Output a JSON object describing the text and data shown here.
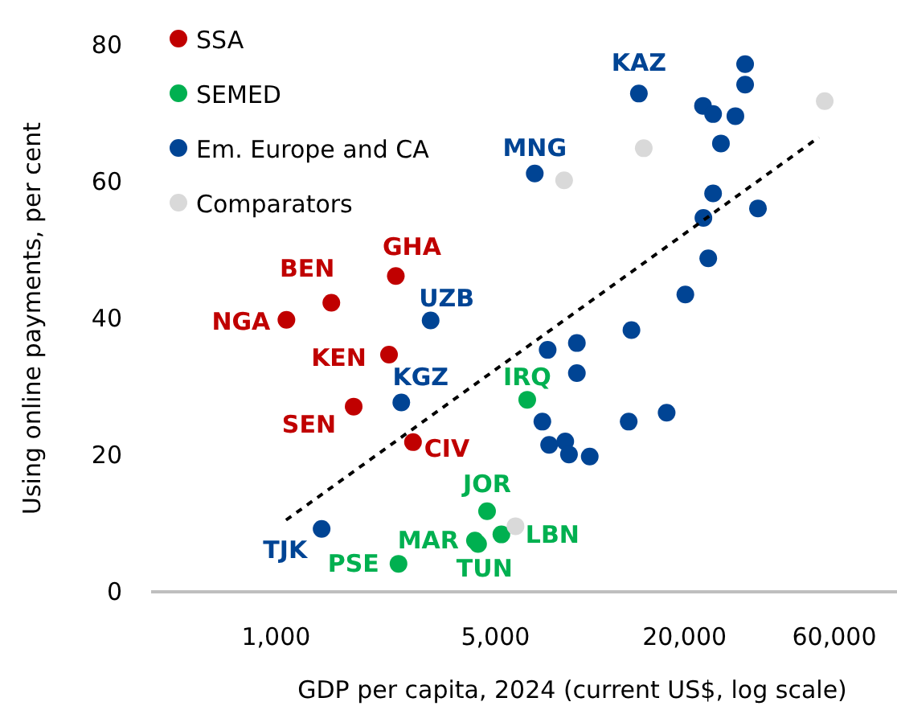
{
  "chart_data": {
    "type": "scatter",
    "xlabel": "GDP per capita, 2024 (current US$, log scale)",
    "ylabel": "Using online payments, per cent",
    "log": "x",
    "xlim": [
      400,
      95000
    ],
    "ylim": [
      0,
      80
    ],
    "xticks": [
      {
        "value": 1000,
        "label": "1,000"
      },
      {
        "value": 5000,
        "label": "5,000"
      },
      {
        "value": 20000,
        "label": "20,000"
      },
      {
        "value": 60000,
        "label": "60,000"
      }
    ],
    "yticks": [
      0,
      20,
      40,
      60,
      80
    ],
    "grid": false,
    "legend": "top left",
    "marker": "circle",
    "series": [
      {
        "name": "SSA",
        "color": "#c00000",
        "x": [
          1079,
          1500,
          2407,
          2290,
          1767,
          2730
        ],
        "values": [
          39.8,
          42.3,
          46.2,
          34.7,
          27.1,
          21.9
        ],
        "value_labels": [
          "NGA",
          "BEN",
          "GHA",
          "KEN",
          "SEN",
          "CIV"
        ]
      },
      {
        "name": "SEMED",
        "color": "#00b050",
        "x": [
          6310,
          4700,
          4300,
          4400,
          5220,
          2455
        ],
        "values": [
          28.1,
          11.8,
          7.5,
          7.0,
          8.4,
          4.1
        ],
        "value_labels": [
          "IRQ",
          "JOR",
          "MAR",
          "TUN",
          "LBN",
          "PSE"
        ]
      },
      {
        "name": "Em. Europe and CA",
        "color": "#004494",
        "x": [
          3107,
          2506,
          1397,
          6668,
          14310,
          31190,
          31190,
          22900,
          24660,
          29040,
          26120,
          24660,
          22970,
          34270,
          23800,
          20120,
          13550,
          9080,
          7330,
          9080,
          7050,
          13280,
          17540,
          7410,
          8340,
          8570,
          9980
        ],
        "values": [
          39.7,
          27.7,
          9.2,
          61.2,
          72.9,
          77.2,
          74.2,
          71.1,
          69.9,
          69.6,
          65.6,
          58.3,
          54.7,
          56.1,
          48.8,
          43.5,
          38.3,
          36.4,
          35.4,
          32.0,
          24.9,
          24.9,
          26.2,
          21.5,
          22.0,
          20.1,
          19.8
        ],
        "value_labels": [
          "UZB",
          "KGZ",
          "TJK",
          "MNG",
          "KAZ",
          null,
          null,
          null,
          null,
          null,
          null,
          null,
          null,
          null,
          null,
          null,
          null,
          null,
          null,
          null,
          null,
          null,
          null,
          null,
          null,
          null,
          null
        ]
      },
      {
        "name": "Comparators",
        "color": "#d9d9d9",
        "x": [
          8270,
          14830,
          55900,
          5790
        ],
        "values": [
          60.2,
          64.9,
          71.8,
          9.6
        ]
      },
      {
        "type": "line",
        "color": "#000000",
        "line_style": "dashed",
        "marker": "none",
        "x": [
          1076,
          53540
        ],
        "values": [
          10.5,
          66.5
        ]
      }
    ]
  }
}
